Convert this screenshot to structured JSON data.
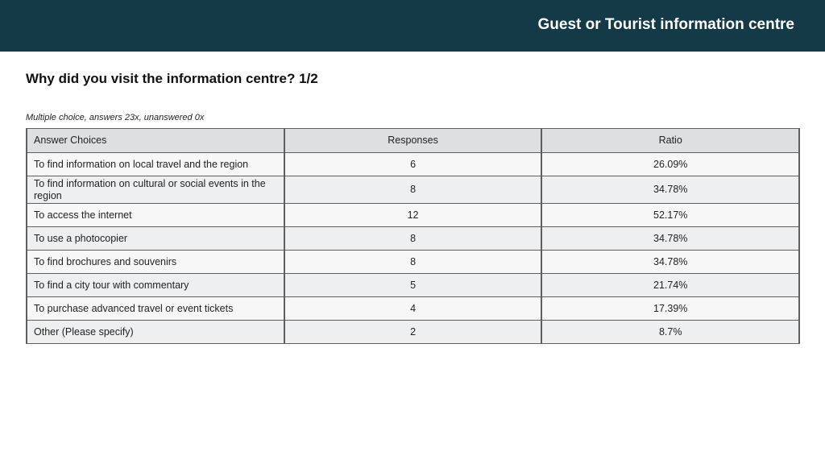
{
  "header": {
    "title": "Guest or Tourist information centre"
  },
  "question": {
    "title": "Why did you visit the information centre? 1/2",
    "meta": "Multiple choice, answers 23x, unanswered 0x"
  },
  "table": {
    "columns": [
      "Answer Choices",
      "Responses",
      "Ratio"
    ],
    "rows": [
      {
        "choice": "To find information on local travel and the region",
        "responses": "6",
        "ratio": "26.09%"
      },
      {
        "choice": "To find information on cultural or social events in the region",
        "responses": "8",
        "ratio": "34.78%"
      },
      {
        "choice": "To access the internet",
        "responses": "12",
        "ratio": "52.17%"
      },
      {
        "choice": "To use a photocopier",
        "responses": "8",
        "ratio": "34.78%"
      },
      {
        "choice": "To find brochures and souvenirs",
        "responses": "8",
        "ratio": "34.78%"
      },
      {
        "choice": "To find a city tour with commentary",
        "responses": "5",
        "ratio": "21.74%"
      },
      {
        "choice": "To purchase advanced travel or event tickets",
        "responses": "4",
        "ratio": "17.39%"
      },
      {
        "choice": "Other (Please specify)",
        "responses": "2",
        "ratio": "8.7%"
      }
    ]
  }
}
